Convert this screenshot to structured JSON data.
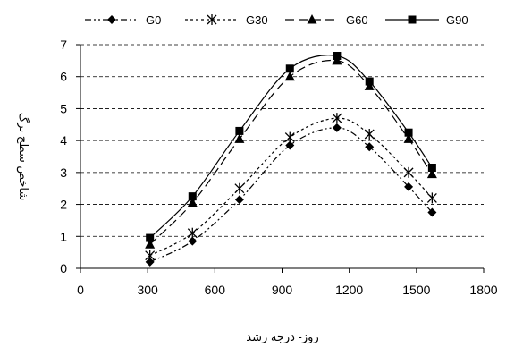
{
  "chart_data": {
    "type": "line",
    "xlabel": "روز- درجه رشد",
    "ylabel": "شاخص سطح برگ",
    "xlim": [
      0,
      1800
    ],
    "ylim": [
      0,
      7
    ],
    "xticks": [
      0,
      300,
      600,
      900,
      1200,
      1500,
      1800
    ],
    "yticks": [
      0,
      1,
      2,
      3,
      4,
      5,
      6,
      7
    ],
    "grid": "horizontal dashed",
    "legend_position": "top",
    "x": [
      310,
      500,
      710,
      935,
      1145,
      1290,
      1465,
      1570
    ],
    "series": [
      {
        "name": "G0",
        "values": [
          0.2,
          0.85,
          2.15,
          3.85,
          4.4,
          3.8,
          2.55,
          1.75
        ]
      },
      {
        "name": "G30",
        "values": [
          0.4,
          1.1,
          2.5,
          4.1,
          4.7,
          4.2,
          3.0,
          2.2
        ]
      },
      {
        "name": "G60",
        "values": [
          0.75,
          2.05,
          4.05,
          6.0,
          6.5,
          5.7,
          4.05,
          2.95
        ]
      },
      {
        "name": "G90",
        "values": [
          0.95,
          2.25,
          4.3,
          6.25,
          6.65,
          5.85,
          4.25,
          3.15
        ]
      }
    ]
  }
}
